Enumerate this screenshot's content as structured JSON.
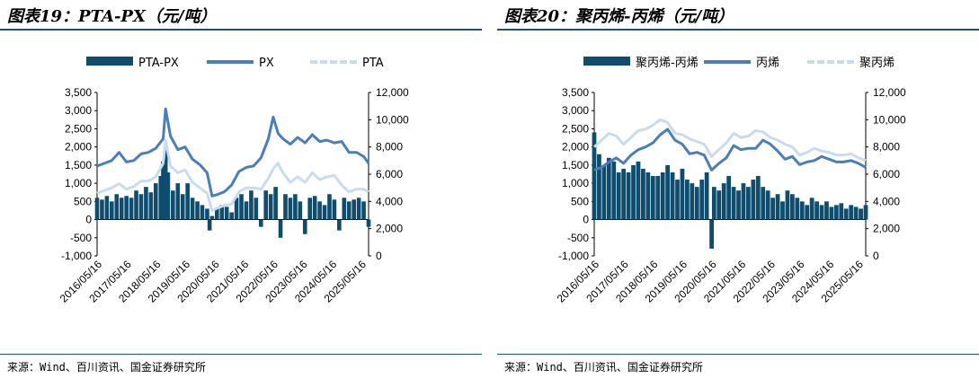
{
  "source_text": "来源：Wind、百川资讯、国金证券研究所",
  "chart_data": [
    {
      "type": "bar+line",
      "title": "图表19：PTA-PX（元/吨）",
      "legend": [
        "PTA-PX",
        "PX",
        "PTA"
      ],
      "legend_position": "top",
      "bar_series": "PTA-PX",
      "left_axis": {
        "min": -1000,
        "max": 3500,
        "step": 500,
        "ticks": [
          "3,500",
          "3,000",
          "2,500",
          "2,000",
          "1,500",
          "1,000",
          "500",
          "0",
          "-500",
          "-1,000"
        ]
      },
      "right_axis": {
        "min": 0,
        "max": 12000,
        "step": 2000,
        "ticks": [
          "12,000",
          "10,000",
          "8,000",
          "6,000",
          "4,000",
          "2,000",
          "0"
        ]
      },
      "x_ticks": [
        "2016/05/16",
        "2017/05/16",
        "2018/05/16",
        "2019/05/16",
        "2020/05/16",
        "2021/05/16",
        "2022/05/16",
        "2023/05/16",
        "2024/05/16",
        "2025/05/16"
      ],
      "x_range": [
        "2016-05",
        "2025-08"
      ],
      "series": [
        {
          "name": "PX",
          "axis": "right",
          "color": "#4a7ebb",
          "dates": [
            "2016-05",
            "2016-08",
            "2016-11",
            "2017-02",
            "2017-05",
            "2017-08",
            "2017-11",
            "2018-02",
            "2018-05",
            "2018-08",
            "2018-09",
            "2018-11",
            "2019-02",
            "2019-05",
            "2019-08",
            "2019-11",
            "2020-02",
            "2020-04",
            "2020-06",
            "2020-09",
            "2020-12",
            "2021-03",
            "2021-06",
            "2021-09",
            "2021-12",
            "2022-03",
            "2022-05",
            "2022-07",
            "2022-09",
            "2022-12",
            "2023-03",
            "2023-06",
            "2023-09",
            "2023-12",
            "2024-03",
            "2024-06",
            "2024-09",
            "2024-12",
            "2025-03",
            "2025-06",
            "2025-08"
          ],
          "values": [
            6600,
            6800,
            7000,
            7600,
            6900,
            7000,
            7500,
            7600,
            7900,
            8600,
            10800,
            8800,
            7800,
            8000,
            7100,
            6700,
            6100,
            4400,
            4500,
            4700,
            5200,
            6200,
            6500,
            6600,
            7200,
            8600,
            10200,
            9000,
            8600,
            8200,
            8700,
            8300,
            8900,
            8400,
            8500,
            8300,
            8400,
            7600,
            7600,
            7300,
            6800
          ]
        },
        {
          "name": "PTA",
          "axis": "right",
          "color": "#c9dcef",
          "dates": [
            "2016-05",
            "2016-08",
            "2016-11",
            "2017-02",
            "2017-05",
            "2017-08",
            "2017-11",
            "2018-02",
            "2018-05",
            "2018-08",
            "2018-09",
            "2018-11",
            "2019-02",
            "2019-05",
            "2019-08",
            "2019-11",
            "2020-02",
            "2020-04",
            "2020-06",
            "2020-09",
            "2020-12",
            "2021-03",
            "2021-06",
            "2021-09",
            "2021-12",
            "2022-03",
            "2022-05",
            "2022-07",
            "2022-09",
            "2022-12",
            "2023-03",
            "2023-06",
            "2023-09",
            "2023-12",
            "2024-03",
            "2024-06",
            "2024-09",
            "2024-12",
            "2025-03",
            "2025-06",
            "2025-08"
          ],
          "values": [
            4600,
            4800,
            5000,
            5300,
            4900,
            5100,
            5500,
            5500,
            5800,
            6800,
            8500,
            6600,
            6100,
            6300,
            5400,
            5000,
            4600,
            3300,
            3500,
            3700,
            3800,
            4700,
            5000,
            5000,
            4900,
            5700,
            6400,
            6800,
            6100,
            5400,
            5800,
            5400,
            6100,
            5600,
            5800,
            5900,
            5200,
            4700,
            4900,
            4900,
            4700
          ]
        }
      ],
      "bars": {
        "name": "PTA-PX",
        "axis": "left",
        "color": "#0e4d6e",
        "dates": [
          "2016-05",
          "2016-07",
          "2016-09",
          "2016-11",
          "2017-01",
          "2017-03",
          "2017-05",
          "2017-07",
          "2017-09",
          "2017-11",
          "2018-01",
          "2018-03",
          "2018-05",
          "2018-07",
          "2018-08",
          "2018-09",
          "2018-10",
          "2018-12",
          "2019-02",
          "2019-04",
          "2019-06",
          "2019-08",
          "2019-10",
          "2019-12",
          "2020-02",
          "2020-03",
          "2020-04",
          "2020-06",
          "2020-08",
          "2020-10",
          "2020-12",
          "2021-02",
          "2021-04",
          "2021-06",
          "2021-08",
          "2021-10",
          "2021-12",
          "2022-02",
          "2022-04",
          "2022-06",
          "2022-08",
          "2022-10",
          "2022-12",
          "2023-02",
          "2023-04",
          "2023-06",
          "2023-08",
          "2023-10",
          "2023-12",
          "2024-02",
          "2024-04",
          "2024-06",
          "2024-08",
          "2024-10",
          "2024-12",
          "2025-02",
          "2025-04",
          "2025-06",
          "2025-08"
        ],
        "values": [
          600,
          550,
          650,
          500,
          700,
          600,
          650,
          600,
          800,
          700,
          900,
          750,
          1000,
          1200,
          1600,
          2000,
          1300,
          800,
          1000,
          700,
          1000,
          600,
          500,
          400,
          300,
          -300,
          100,
          300,
          400,
          350,
          200,
          600,
          700,
          500,
          800,
          600,
          -200,
          800,
          700,
          900,
          -500,
          700,
          600,
          700,
          500,
          -400,
          600,
          650,
          500,
          400,
          700,
          550,
          -300,
          600,
          500,
          550,
          600,
          500,
          -200
        ]
      }
    },
    {
      "type": "bar+line",
      "title": "图表20：聚丙烯-丙烯（元/吨）",
      "legend": [
        "聚丙烯-丙烯",
        "丙烯",
        "聚丙烯"
      ],
      "legend_position": "top",
      "bar_series": "聚丙烯-丙烯",
      "left_axis": {
        "min": -1000,
        "max": 3500,
        "step": 500,
        "ticks": [
          "3,500",
          "3,000",
          "2,500",
          "2,000",
          "1,500",
          "1,000",
          "500",
          "0",
          "-500",
          "-1,000"
        ]
      },
      "right_axis": {
        "min": 0,
        "max": 12000,
        "step": 2000,
        "ticks": [
          "12,000",
          "10,000",
          "8,000",
          "6,000",
          "4,000",
          "2,000",
          "0"
        ]
      },
      "x_ticks": [
        "2016/05/16",
        "2017/05/16",
        "2018/05/16",
        "2019/05/16",
        "2020/05/16",
        "2021/05/16",
        "2022/05/16",
        "2023/05/16",
        "2024/05/16",
        "2025/05/16"
      ],
      "x_range": [
        "2016-05",
        "2025-08"
      ],
      "series": [
        {
          "name": "丙烯",
          "axis": "right",
          "color": "#4a7ebb",
          "dates": [
            "2016-05",
            "2016-08",
            "2016-11",
            "2017-02",
            "2017-05",
            "2017-08",
            "2017-11",
            "2018-02",
            "2018-05",
            "2018-08",
            "2018-11",
            "2019-02",
            "2019-05",
            "2019-08",
            "2019-11",
            "2020-02",
            "2020-05",
            "2020-08",
            "2020-11",
            "2021-02",
            "2021-05",
            "2021-08",
            "2021-11",
            "2022-02",
            "2022-05",
            "2022-08",
            "2022-11",
            "2023-02",
            "2023-05",
            "2023-08",
            "2023-11",
            "2024-02",
            "2024-05",
            "2024-08",
            "2024-11",
            "2025-02",
            "2025-05",
            "2025-08"
          ],
          "values": [
            6300,
            6500,
            6900,
            7200,
            6800,
            7400,
            7800,
            8000,
            8300,
            8900,
            9300,
            8500,
            8200,
            7500,
            7600,
            7400,
            6300,
            6800,
            7200,
            8100,
            7800,
            7900,
            7900,
            8500,
            8200,
            7700,
            7100,
            7300,
            6700,
            6900,
            7000,
            7300,
            7100,
            6900,
            6900,
            7000,
            6800,
            6500
          ]
        },
        {
          "name": "聚丙烯",
          "axis": "right",
          "color": "#c9dcef",
          "dates": [
            "2016-05",
            "2016-08",
            "2016-11",
            "2017-02",
            "2017-05",
            "2017-08",
            "2017-11",
            "2018-02",
            "2018-05",
            "2018-08",
            "2018-11",
            "2019-02",
            "2019-05",
            "2019-08",
            "2019-11",
            "2020-02",
            "2020-05",
            "2020-08",
            "2020-11",
            "2021-02",
            "2021-05",
            "2021-08",
            "2021-11",
            "2022-02",
            "2022-05",
            "2022-08",
            "2022-11",
            "2023-02",
            "2023-05",
            "2023-08",
            "2023-11",
            "2024-02",
            "2024-05",
            "2024-08",
            "2024-11",
            "2025-02",
            "2025-05",
            "2025-08"
          ],
          "values": [
            8000,
            8500,
            9000,
            8800,
            8200,
            8700,
            9200,
            9300,
            9600,
            10000,
            9800,
            9000,
            8900,
            8600,
            8400,
            8200,
            7300,
            7800,
            8300,
            9000,
            8700,
            8800,
            9200,
            9100,
            8700,
            8500,
            8200,
            8000,
            7400,
            7600,
            7900,
            7700,
            7600,
            7400,
            7400,
            7500,
            7200,
            7000
          ]
        }
      ],
      "bars": {
        "name": "聚丙烯-丙烯",
        "axis": "left",
        "color": "#0e4d6e",
        "dates": [
          "2016-05",
          "2016-07",
          "2016-09",
          "2016-11",
          "2017-01",
          "2017-03",
          "2017-05",
          "2017-07",
          "2017-09",
          "2017-11",
          "2018-01",
          "2018-03",
          "2018-05",
          "2018-07",
          "2018-09",
          "2018-11",
          "2019-01",
          "2019-03",
          "2019-05",
          "2019-07",
          "2019-09",
          "2019-11",
          "2020-01",
          "2020-03",
          "2020-05",
          "2020-06",
          "2020-08",
          "2020-10",
          "2020-12",
          "2021-02",
          "2021-04",
          "2021-06",
          "2021-08",
          "2021-10",
          "2021-12",
          "2022-02",
          "2022-04",
          "2022-06",
          "2022-08",
          "2022-10",
          "2022-12",
          "2023-02",
          "2023-04",
          "2023-06",
          "2023-08",
          "2023-10",
          "2023-12",
          "2024-02",
          "2024-04",
          "2024-06",
          "2024-08",
          "2024-10",
          "2024-12",
          "2025-02",
          "2025-04",
          "2025-06",
          "2025-08"
        ],
        "values": [
          2400,
          1800,
          1500,
          1700,
          1600,
          1300,
          1400,
          1300,
          1500,
          1600,
          1400,
          1300,
          1200,
          1200,
          1300,
          1500,
          1300,
          1100,
          1400,
          1100,
          1000,
          900,
          1100,
          1300,
          -800,
          900,
          800,
          1000,
          1200,
          900,
          800,
          1000,
          900,
          1100,
          1200,
          900,
          800,
          600,
          700,
          500,
          800,
          700,
          600,
          500,
          400,
          600,
          500,
          400,
          500,
          350,
          400,
          450,
          300,
          400,
          350,
          300,
          400
        ]
      }
    }
  ]
}
